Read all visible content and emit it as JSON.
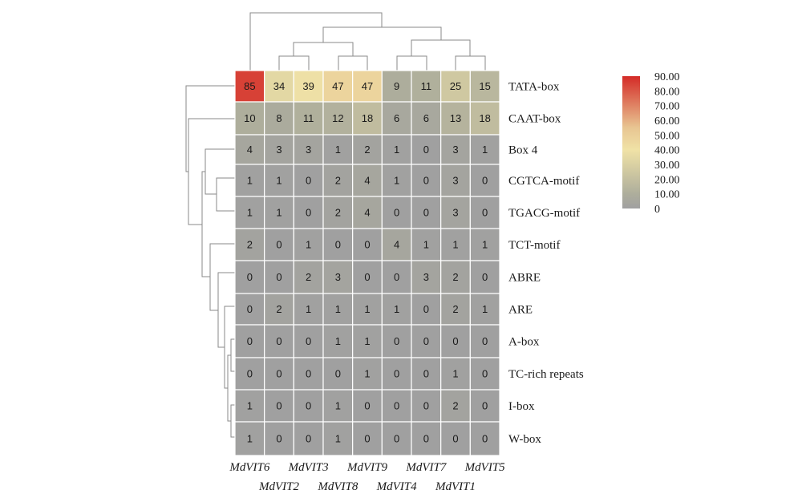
{
  "chart_data": {
    "type": "heatmap",
    "title": "",
    "columns": [
      "MdVIT6",
      "MdVIT2",
      "MdVIT3",
      "MdVIT8",
      "MdVIT9",
      "MdVIT4",
      "MdVIT7",
      "MdVIT1",
      "MdVIT5"
    ],
    "rows": [
      "TATA-box",
      "CAAT-box",
      "Box 4",
      "CGTCA-motif",
      "TGACG-motif",
      "TCT-motif",
      "ABRE",
      "ARE",
      "A-box",
      "TC-rich repeats",
      "I-box",
      "W-box"
    ],
    "values": [
      [
        85,
        34,
        39,
        47,
        47,
        9,
        11,
        25,
        15
      ],
      [
        10,
        8,
        11,
        12,
        18,
        6,
        6,
        13,
        18
      ],
      [
        4,
        3,
        3,
        1,
        2,
        1,
        0,
        3,
        1
      ],
      [
        1,
        1,
        0,
        2,
        4,
        1,
        0,
        3,
        0
      ],
      [
        1,
        1,
        0,
        2,
        4,
        0,
        0,
        3,
        0
      ],
      [
        2,
        0,
        1,
        0,
        0,
        4,
        1,
        1,
        1
      ],
      [
        0,
        0,
        2,
        3,
        0,
        0,
        3,
        2,
        0
      ],
      [
        0,
        2,
        1,
        1,
        1,
        1,
        0,
        2,
        1
      ],
      [
        0,
        0,
        0,
        1,
        1,
        0,
        0,
        0,
        0
      ],
      [
        0,
        0,
        0,
        0,
        1,
        0,
        0,
        1,
        0
      ],
      [
        1,
        0,
        0,
        1,
        0,
        0,
        0,
        2,
        0
      ],
      [
        1,
        0,
        0,
        1,
        0,
        0,
        0,
        0,
        0
      ]
    ],
    "color_scale": {
      "min": 0,
      "max": 90,
      "stops": [
        {
          "value": 0,
          "color": "#a0a0a0"
        },
        {
          "value": 10,
          "color": "#aeae9c"
        },
        {
          "value": 40,
          "color": "#f0e2a6"
        },
        {
          "value": 55,
          "color": "#e8c592"
        },
        {
          "value": 90,
          "color": "#d42b27"
        }
      ]
    },
    "legend": {
      "placement": "top-right",
      "tick_labels": [
        "90.00",
        "80.00",
        "70.00",
        "60.00",
        "50.00",
        "40.00",
        "30.00",
        "20.00",
        "10.00",
        "0"
      ]
    },
    "row_dendrogram": true,
    "column_dendrogram": true
  }
}
